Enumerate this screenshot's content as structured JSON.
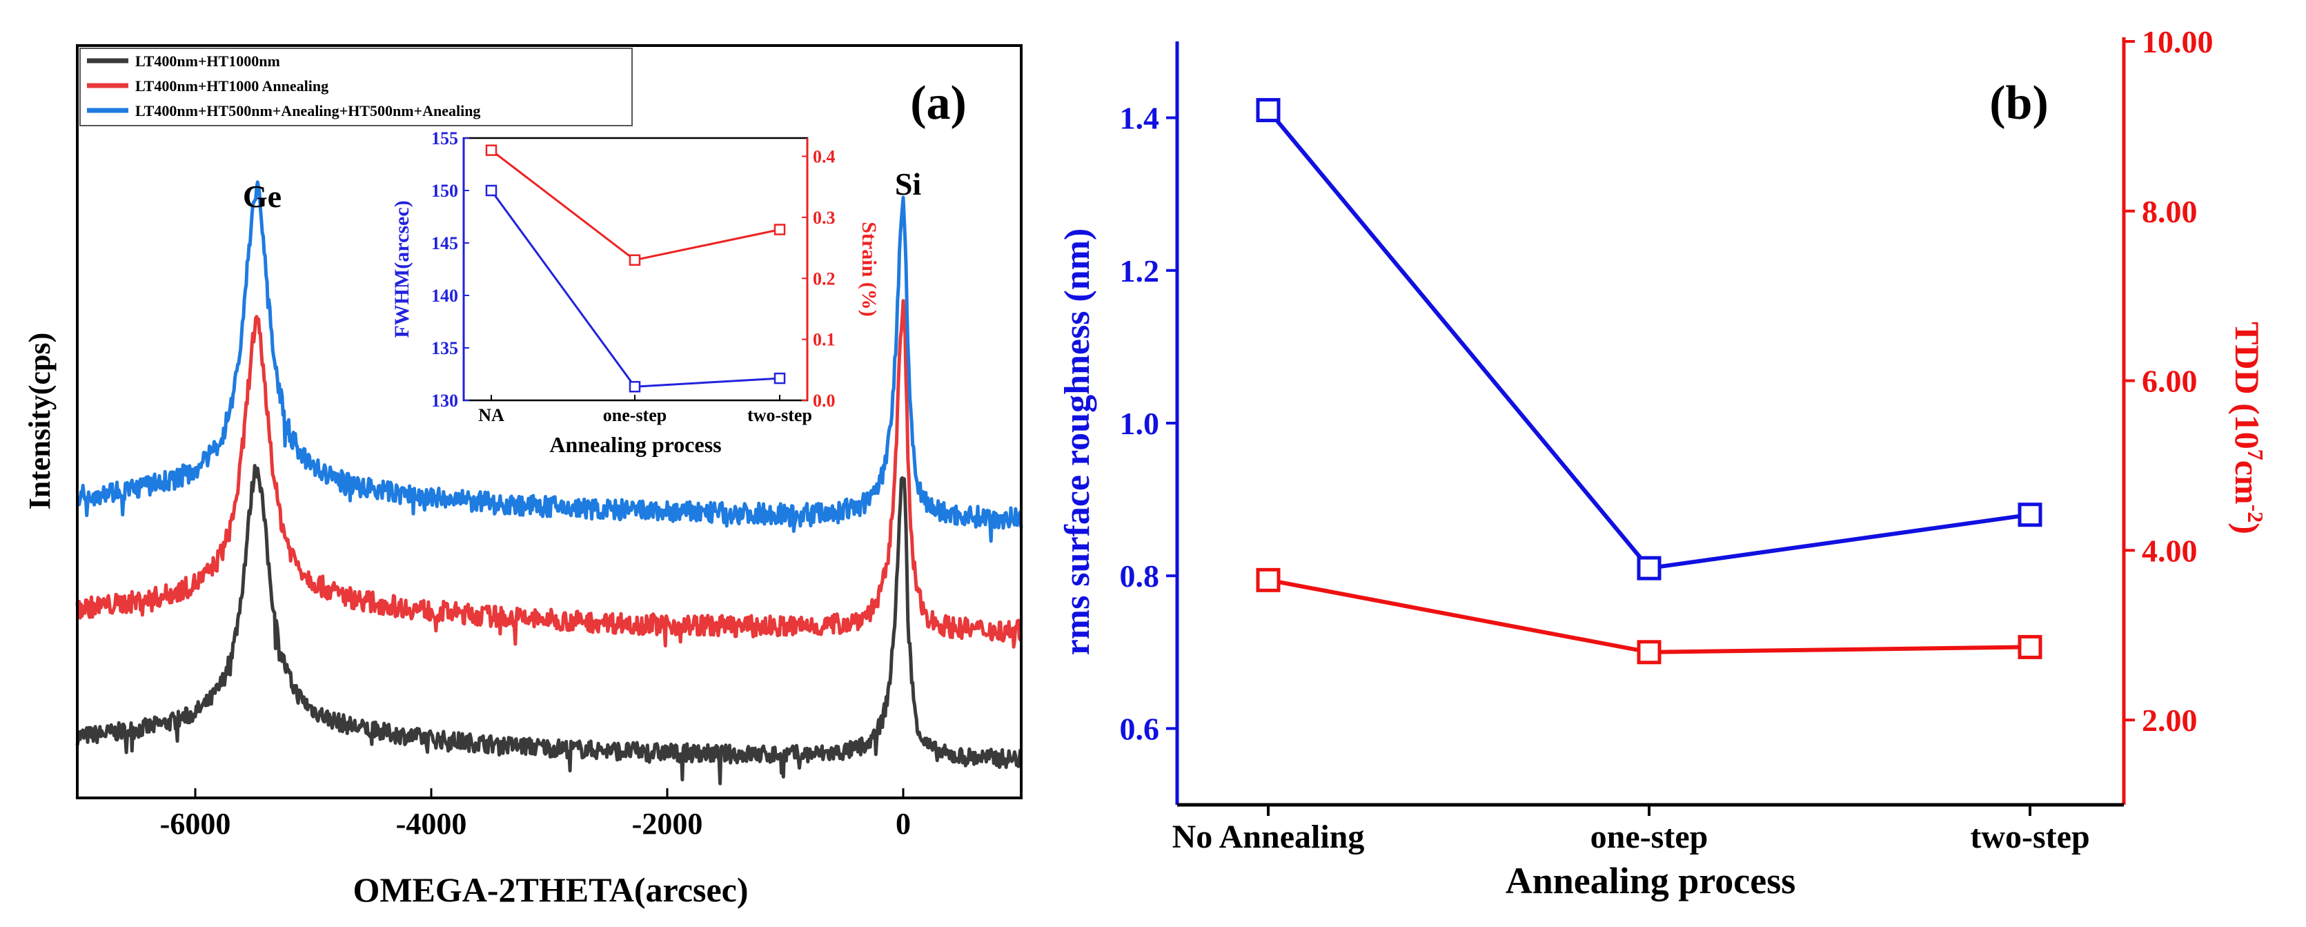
{
  "colors": {
    "black": "#3a3a3a",
    "red": "#e8383a",
    "blue": "#1e7be0",
    "axis_blue": "#1010e0",
    "axis_red": "#ee1111",
    "inset_blue": "#2222dd",
    "inset_red": "#ee2222"
  },
  "chart_data": [
    {
      "id": "a",
      "type": "line",
      "panel_label": "(a)",
      "xlabel": "OMEGA-2THETA(arcsec)",
      "ylabel": "Intensity(cps)",
      "xlim": [
        -7000,
        1000
      ],
      "xticks": [
        -6000,
        -4000,
        -2000,
        0
      ],
      "xtick_labels": [
        "-6000",
        "-4000",
        "-2000",
        "0"
      ],
      "ylim": [
        0,
        1
      ],
      "y_ticks_shown": false,
      "annotations": [
        "Ge",
        "Si"
      ],
      "peak_positions": [
        {
          "label": "Ge",
          "x": -5480
        },
        {
          "label": "Si",
          "x": 0
        }
      ],
      "legend": [
        "LT400nm+HT1000nm",
        "LT400nm+HT1000 Annealing",
        "LT400nm+HT500nm+Anealing+HT500nm+Anealing"
      ],
      "series": [
        {
          "name": "LT400nm+HT1000nm",
          "color": "black",
          "baseline": 0.06,
          "ge_peak": 0.39,
          "si_peak": 0.44,
          "noise": 0.012
        },
        {
          "name": "LT400nm+HT1000 Annealing",
          "color": "red",
          "baseline": 0.23,
          "ge_peak": 0.58,
          "si_peak": 0.66,
          "noise": 0.014
        },
        {
          "name": "LT400nm+HT500nm+Anealing+HT500nm+Anealing",
          "color": "blue",
          "baseline": 0.38,
          "ge_peak": 0.76,
          "si_peak": 0.8,
          "noise": 0.014
        }
      ]
    },
    {
      "id": "a-inset",
      "type": "line",
      "categories": [
        "NA",
        "one-step",
        "two-step"
      ],
      "xlabel": "Annealing process",
      "ylabel": "FWHM(arcsec)",
      "ylabel_right": "Strain (%)",
      "ylim": [
        130,
        155
      ],
      "yticks": [
        130,
        135,
        140,
        145,
        150,
        155
      ],
      "ylim_right": [
        0.0,
        0.43
      ],
      "yticks_right": [
        "0.0",
        "0.1",
        "0.2",
        "0.3",
        "0.4"
      ],
      "series": [
        {
          "name": "FWHM(arcsec)",
          "axis": "left",
          "color": "inset_blue",
          "values": [
            150.0,
            131.3,
            132.1
          ]
        },
        {
          "name": "Strain (%)",
          "axis": "right",
          "color": "inset_red",
          "values": [
            0.41,
            0.23,
            0.28
          ]
        }
      ]
    },
    {
      "id": "b",
      "type": "line",
      "panel_label": "(b)",
      "categories": [
        "No Annealing",
        "one-step",
        "two-step"
      ],
      "xlabel": "Annealing process",
      "ylabel": "rms surface roughness (nm)",
      "ylim": [
        0.5,
        1.5
      ],
      "yticks": [
        0.6,
        0.8,
        1.0,
        1.2,
        1.4
      ],
      "ytick_labels": [
        "0.6",
        "0.8",
        "1.0",
        "1.2",
        "1.4"
      ],
      "ylabel_right_parts": [
        "TDD (10",
        "7",
        "cm",
        "-2",
        ")"
      ],
      "ylim_right": [
        1.0,
        10.0
      ],
      "yticks_right": [
        2,
        4,
        6,
        8,
        10
      ],
      "ytick_labels_right": [
        "2.00",
        "4.00",
        "6.00",
        "8.00",
        "10.00"
      ],
      "series": [
        {
          "name": "rms surface roughness (nm)",
          "axis": "left",
          "color": "axis_blue",
          "values": [
            1.41,
            0.81,
            0.88
          ]
        },
        {
          "name": "TDD (10^7 cm^-2)",
          "axis": "right",
          "color": "axis_red",
          "values": [
            3.65,
            2.8,
            2.86
          ]
        }
      ]
    }
  ]
}
